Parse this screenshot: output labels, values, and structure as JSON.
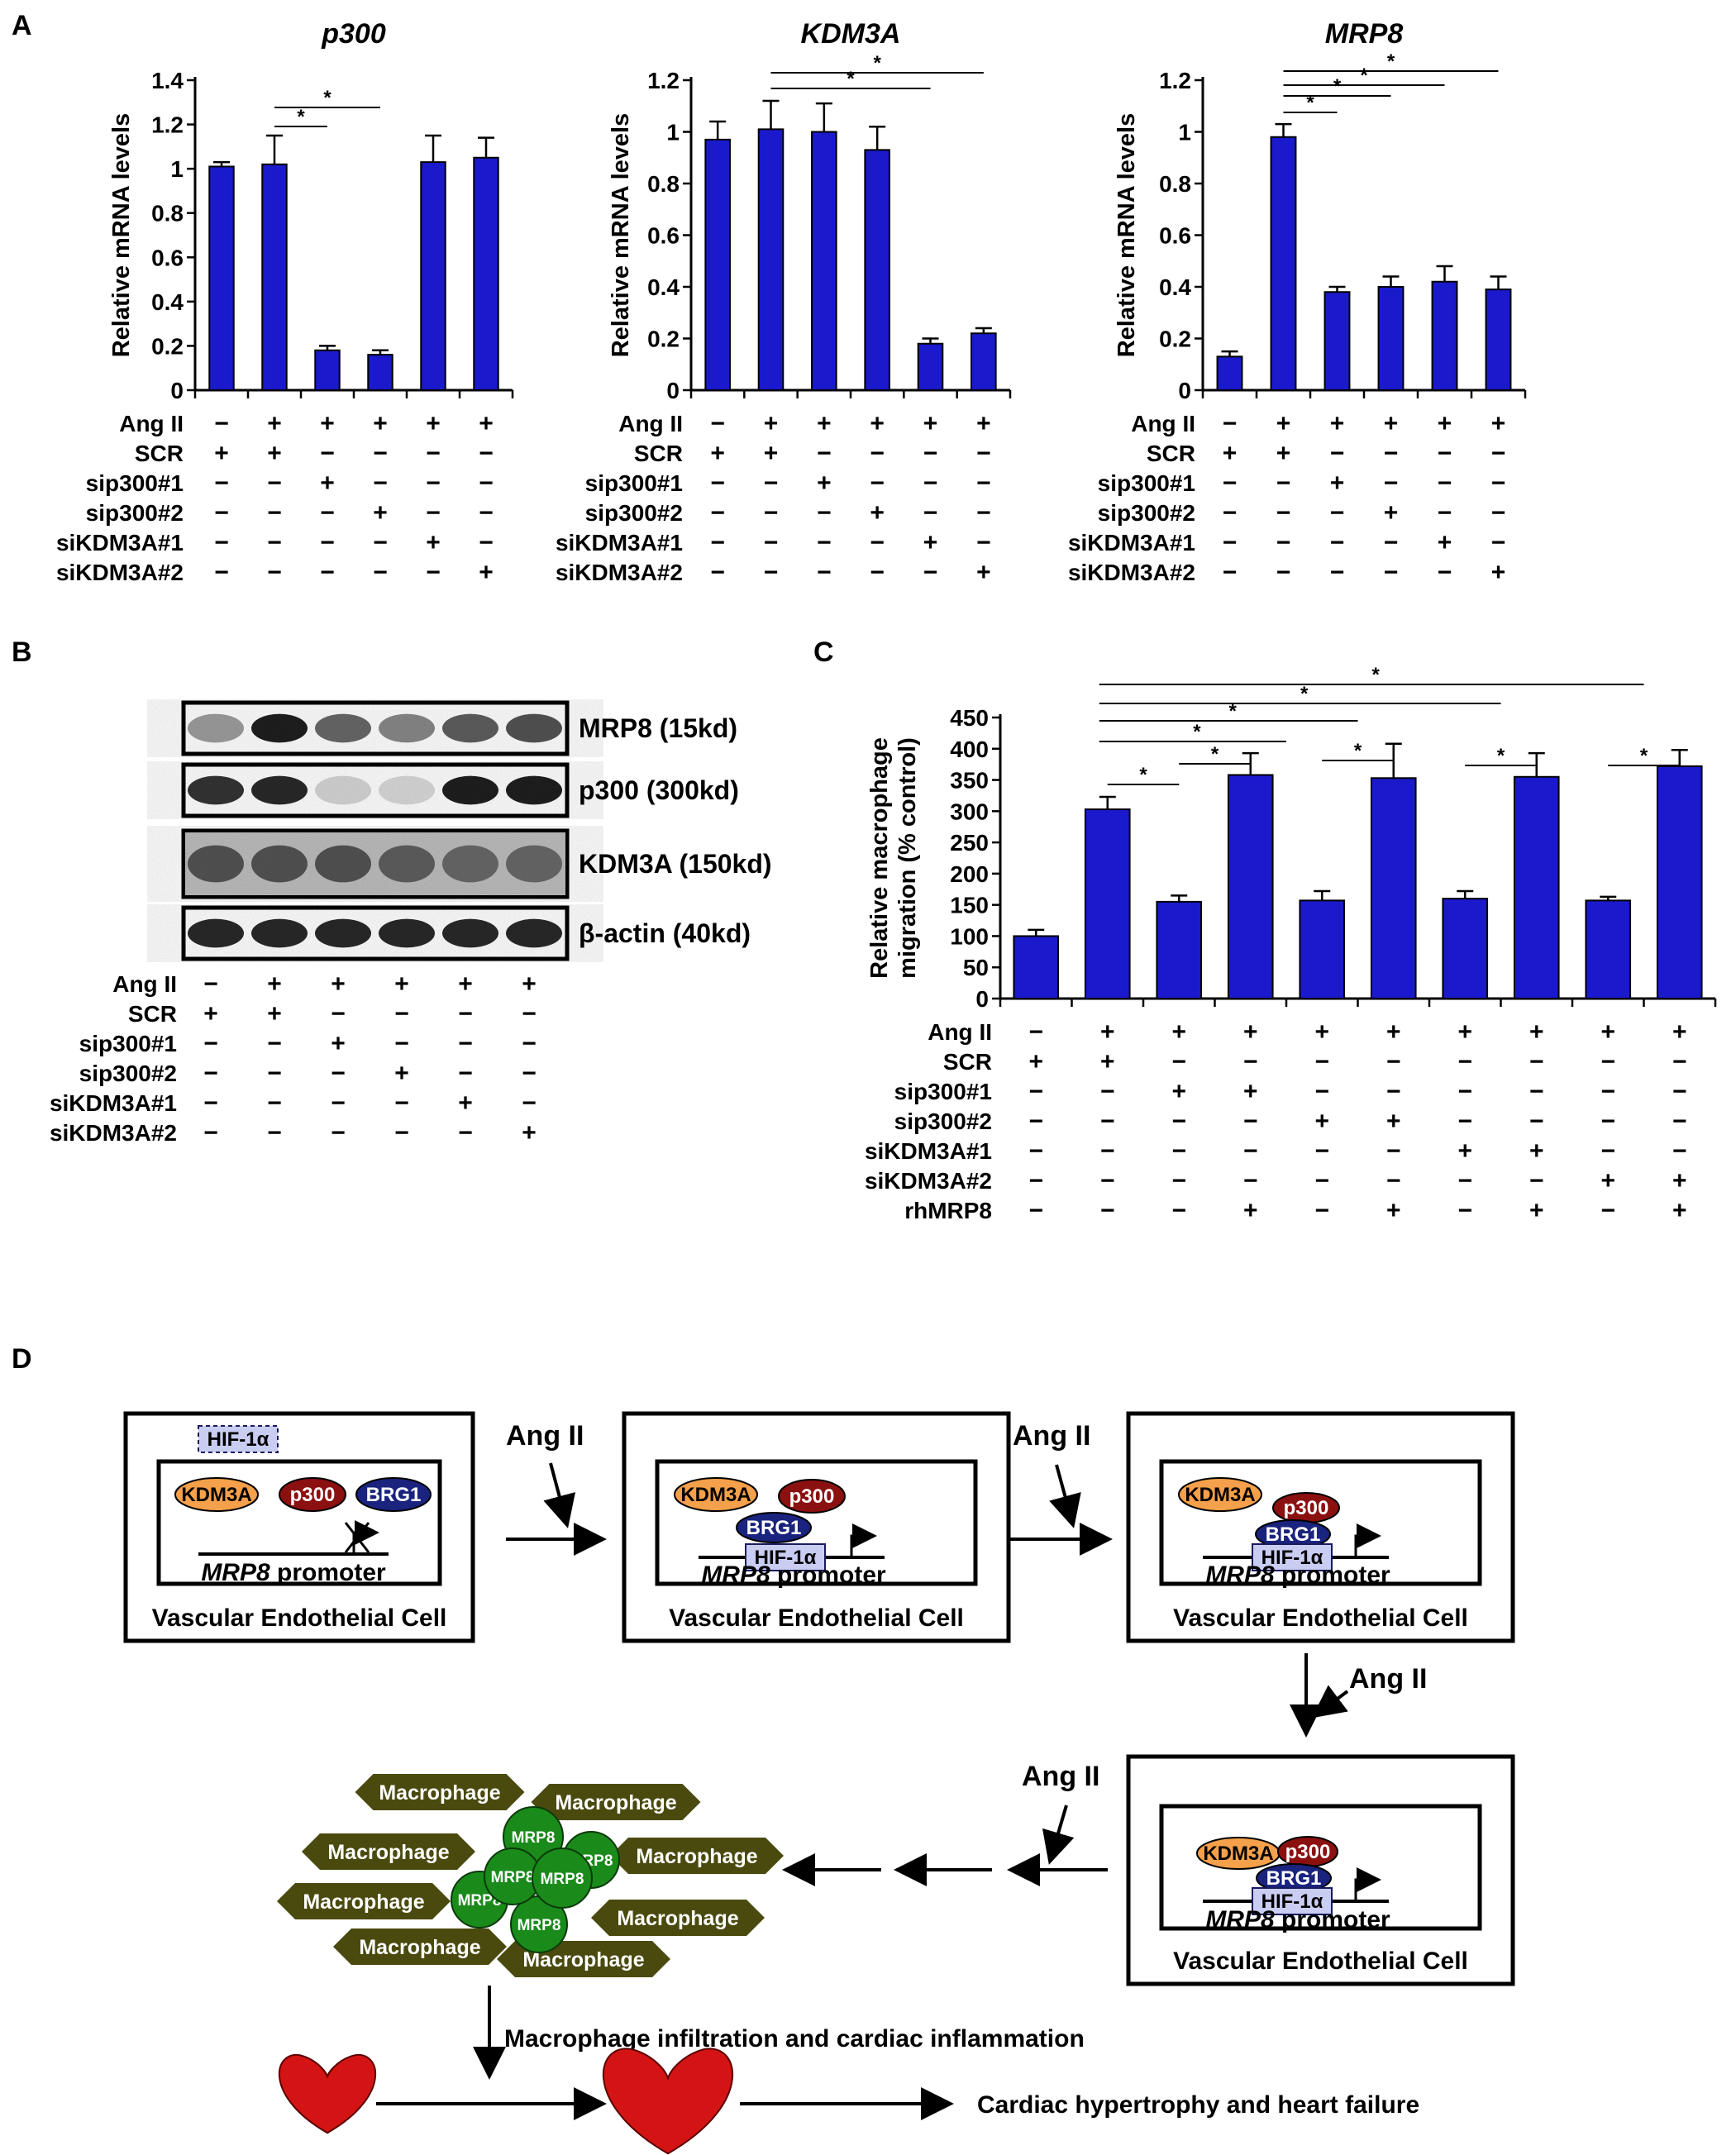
{
  "panel_letters": {
    "A": "A",
    "B": "B",
    "C": "C",
    "D": "D"
  },
  "treatment_rows": [
    "Ang II",
    "SCR",
    "sip300#1",
    "sip300#2",
    "siKDM3A#1",
    "siKDM3A#2"
  ],
  "treatment_rows_c": [
    "Ang II",
    "SCR",
    "sip300#1",
    "sip300#2",
    "siKDM3A#1",
    "siKDM3A#2",
    "rhMRP8"
  ],
  "treatment_grid_6": [
    [
      "−",
      "+",
      "+",
      "+",
      "+",
      "+"
    ],
    [
      "+",
      "+",
      "−",
      "−",
      "−",
      "−"
    ],
    [
      "−",
      "−",
      "+",
      "−",
      "−",
      "−"
    ],
    [
      "−",
      "−",
      "−",
      "+",
      "−",
      "−"
    ],
    [
      "−",
      "−",
      "−",
      "−",
      "+",
      "−"
    ],
    [
      "−",
      "−",
      "−",
      "−",
      "−",
      "+"
    ]
  ],
  "treatment_grid_c": [
    [
      "−",
      "+",
      "+",
      "+",
      "+",
      "+",
      "+",
      "+",
      "+",
      "+"
    ],
    [
      "+",
      "+",
      "−",
      "−",
      "−",
      "−",
      "−",
      "−",
      "−",
      "−"
    ],
    [
      "−",
      "−",
      "+",
      "+",
      "−",
      "−",
      "−",
      "−",
      "−",
      "−"
    ],
    [
      "−",
      "−",
      "−",
      "−",
      "+",
      "+",
      "−",
      "−",
      "−",
      "−"
    ],
    [
      "−",
      "−",
      "−",
      "−",
      "−",
      "−",
      "+",
      "+",
      "−",
      "−"
    ],
    [
      "−",
      "−",
      "−",
      "−",
      "−",
      "−",
      "−",
      "−",
      "+",
      "+"
    ],
    [
      "−",
      "−",
      "−",
      "+",
      "−",
      "+",
      "−",
      "+",
      "−",
      "+"
    ]
  ],
  "chart_data": [
    {
      "type": "bar",
      "title": "p300",
      "ylabel": "Relative mRNA levels",
      "ylim": [
        0,
        1.4
      ],
      "yticks": [
        "0",
        "0.2",
        "0.4",
        "0.6",
        "0.8",
        "1",
        "1.2",
        "1.4"
      ],
      "values": [
        1.01,
        1.02,
        0.18,
        0.16,
        1.03,
        1.05
      ],
      "errors": [
        0.02,
        0.13,
        0.02,
        0.02,
        0.12,
        0.09
      ],
      "color": "#1a1acc",
      "significance": [
        {
          "from": 1,
          "to": 2,
          "label": "*"
        },
        {
          "from": 1,
          "to": 3,
          "label": "*"
        }
      ]
    },
    {
      "type": "bar",
      "title": "KDM3A",
      "ylabel": "Relative mRNA levels",
      "ylim": [
        0,
        1.2
      ],
      "yticks": [
        "0",
        "0.2",
        "0.4",
        "0.6",
        "0.8",
        "1",
        "1.2"
      ],
      "values": [
        0.97,
        1.01,
        1.0,
        0.93,
        0.18,
        0.22
      ],
      "errors": [
        0.07,
        0.11,
        0.11,
        0.09,
        0.02,
        0.02
      ],
      "color": "#1a1acc",
      "significance": [
        {
          "from": 1,
          "to": 4,
          "label": "*"
        },
        {
          "from": 1,
          "to": 5,
          "label": "*"
        }
      ]
    },
    {
      "type": "bar",
      "title": "MRP8",
      "ylabel": "Relative mRNA levels",
      "ylim": [
        0,
        1.2
      ],
      "yticks": [
        "0",
        "0.2",
        "0.4",
        "0.6",
        "0.8",
        "1",
        "1.2"
      ],
      "values": [
        0.13,
        0.98,
        0.38,
        0.4,
        0.42,
        0.39
      ],
      "errors": [
        0.02,
        0.05,
        0.02,
        0.04,
        0.06,
        0.05
      ],
      "color": "#1a1acc",
      "significance": [
        {
          "from": 1,
          "to": 2,
          "label": "*"
        },
        {
          "from": 1,
          "to": 3,
          "label": "*"
        },
        {
          "from": 1,
          "to": 4,
          "label": "*"
        },
        {
          "from": 1,
          "to": 5,
          "label": "*"
        }
      ]
    },
    {
      "type": "bar",
      "title": "",
      "ylabel": "Relative macrophage migration (% control)",
      "ylabel_lines": [
        "Relative macrophage",
        "migration (% control)"
      ],
      "ylim": [
        0,
        450
      ],
      "yticks": [
        "0",
        "50",
        "100",
        "150",
        "200",
        "250",
        "300",
        "350",
        "400",
        "450"
      ],
      "values": [
        100,
        303,
        155,
        358,
        157,
        353,
        160,
        355,
        157,
        372
      ],
      "errors": [
        10,
        20,
        10,
        35,
        15,
        55,
        12,
        38,
        6,
        26
      ],
      "color": "#1a1acc",
      "significance": [
        {
          "from": 1,
          "to": 2,
          "label": "*"
        },
        {
          "from": 2,
          "to": 3,
          "label": "*"
        },
        {
          "from": 4,
          "to": 5,
          "label": "*"
        },
        {
          "from": 6,
          "to": 7,
          "label": "*"
        },
        {
          "from": 8,
          "to": 9,
          "label": "*"
        },
        {
          "from": 1,
          "to": 3,
          "label": "*"
        },
        {
          "from": 1,
          "to": 4,
          "label": "*"
        },
        {
          "from": 1,
          "to": 6,
          "label": "*"
        },
        {
          "from": 1,
          "to": 8,
          "label": "*"
        }
      ]
    }
  ],
  "blot": {
    "labels": [
      "MRP8 (15kd)",
      "p300 (300kd)",
      "KDM3A (150kd)",
      "β-actin (40kd)"
    ],
    "intensity": [
      [
        0.35,
        0.95,
        0.6,
        0.45,
        0.65,
        0.7
      ],
      [
        0.85,
        0.9,
        0.08,
        0.06,
        0.95,
        0.95
      ],
      [
        0.7,
        0.7,
        0.7,
        0.65,
        0.6,
        0.6
      ],
      [
        0.9,
        0.9,
        0.9,
        0.9,
        0.9,
        0.9
      ]
    ]
  },
  "diagram": {
    "hif": "HIF-1α",
    "kdm3a": "KDM3A",
    "p300": "p300",
    "brg1": "BRG1",
    "mrp8_gene": "MRP8",
    "promoter": " promoter",
    "cell": "Vascular Endothelial Cell",
    "angii": "Ang II",
    "macrophage": "Macrophage",
    "mrp8_protein": "MRP8",
    "infiltration": "Macrophage infiltration and cardiac inflammation",
    "outcome": "Cardiac hypertrophy and heart failure"
  },
  "colors": {
    "bar": "#1a1acc",
    "kdm3a": "#f5a04a",
    "p300": "#8b1010",
    "brg1": "#1a237e",
    "hif": "#c9cdf2",
    "macrophage": "#4a4a0f",
    "mrp8": "#1a8a1a",
    "heart": "#d41414"
  }
}
